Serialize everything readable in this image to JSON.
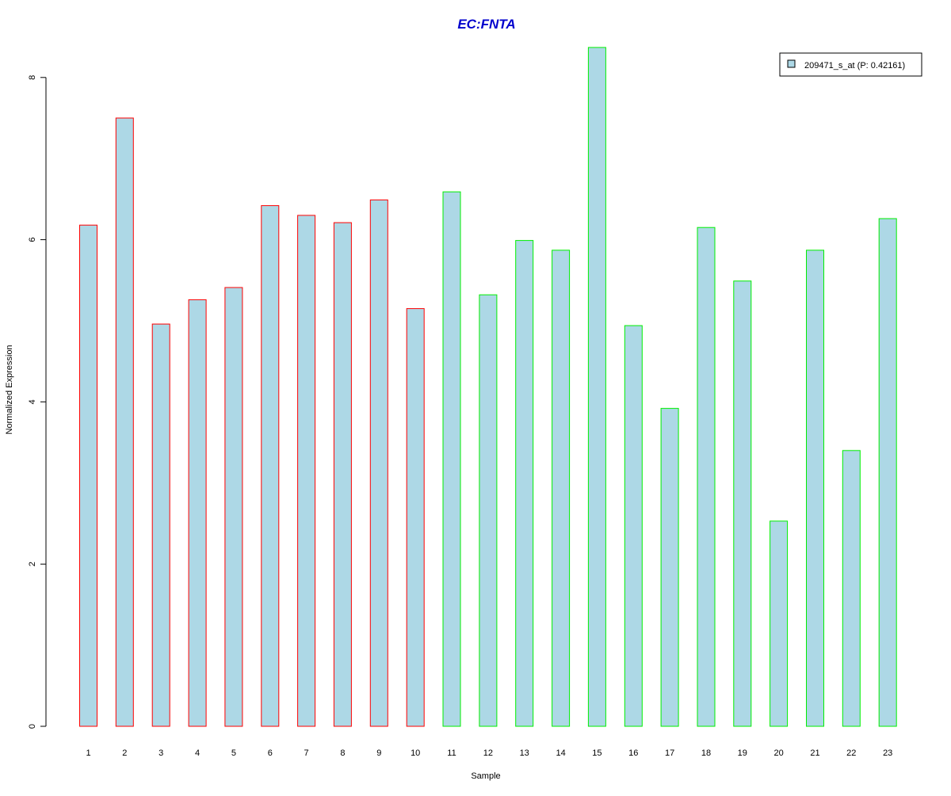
{
  "chart_data": {
    "type": "bar",
    "title": "EC:FNTA",
    "xlabel": "Sample",
    "ylabel": "Normalized Expression",
    "categories": [
      "1",
      "2",
      "3",
      "4",
      "5",
      "6",
      "7",
      "8",
      "9",
      "10",
      "11",
      "12",
      "13",
      "14",
      "15",
      "16",
      "17",
      "18",
      "19",
      "20",
      "21",
      "22",
      "23"
    ],
    "series": [
      {
        "name": "209471_s_at (P: 0.42161)",
        "values": [
          6.18,
          7.5,
          4.96,
          5.26,
          5.41,
          6.42,
          6.3,
          6.21,
          6.49,
          5.15,
          6.59,
          5.32,
          5.99,
          5.87,
          8.37,
          4.94,
          3.92,
          6.15,
          5.49,
          2.53,
          5.87,
          3.4,
          6.26
        ]
      }
    ],
    "bar_groups": [
      "red",
      "red",
      "red",
      "red",
      "red",
      "red",
      "red",
      "red",
      "red",
      "red",
      "green",
      "green",
      "green",
      "green",
      "green",
      "green",
      "green",
      "green",
      "green",
      "green",
      "green",
      "green",
      "green"
    ],
    "yticks": [
      0,
      2,
      4,
      6,
      8
    ],
    "ylim": [
      0,
      8.4
    ],
    "grid": false,
    "legend_position": "top-right",
    "colors": {
      "bar_fill": "#add8e6",
      "title": "#0000cd",
      "red": "#ff0000",
      "green": "#00ee00",
      "axis": "#000000"
    }
  }
}
